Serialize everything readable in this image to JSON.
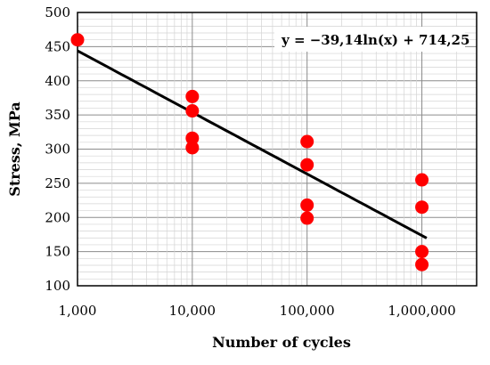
{
  "chart_data": {
    "type": "scatter",
    "xlabel": "Number of cycles",
    "ylabel": "Stress, MPa",
    "x_scale": "log",
    "xlim": [
      1000,
      3000000
    ],
    "ylim": [
      100,
      500
    ],
    "x_ticks": [
      1000,
      10000,
      100000,
      1000000
    ],
    "x_tick_labels": [
      "1,000",
      "10,000",
      "100,000",
      "1,000,000"
    ],
    "y_ticks": [
      100,
      150,
      200,
      250,
      300,
      350,
      400,
      450,
      500
    ],
    "y_tick_labels": [
      "100",
      "150",
      "200",
      "250",
      "300",
      "350",
      "400",
      "450",
      "500"
    ],
    "grid": true,
    "points": [
      {
        "x": 1000,
        "y": 460
      },
      {
        "x": 10000,
        "y": 377
      },
      {
        "x": 10000,
        "y": 356
      },
      {
        "x": 10000,
        "y": 316
      },
      {
        "x": 10000,
        "y": 302
      },
      {
        "x": 100000,
        "y": 311
      },
      {
        "x": 100000,
        "y": 277
      },
      {
        "x": 100000,
        "y": 218
      },
      {
        "x": 100000,
        "y": 199
      },
      {
        "x": 1000000,
        "y": 255
      },
      {
        "x": 1000000,
        "y": 215
      },
      {
        "x": 1000000,
        "y": 150
      },
      {
        "x": 1000000,
        "y": 131
      }
    ],
    "point_color": "#ff0000",
    "trendline": {
      "type": "logarithmic",
      "a": -39.14,
      "b": 714.25,
      "x_range": [
        1000,
        1100000
      ],
      "color": "#000000"
    },
    "annotation": "y = −39,14ln(x) + 714,25"
  }
}
